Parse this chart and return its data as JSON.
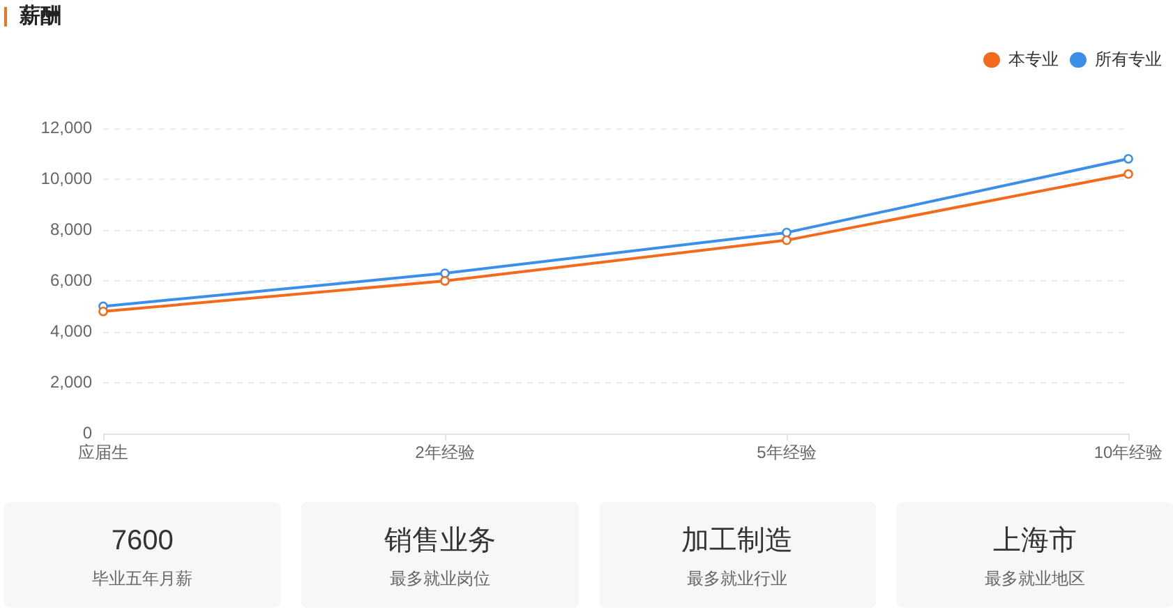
{
  "chart_data": [
    {
      "type": "line",
      "title": "薪酬",
      "categories": [
        "应届生",
        "2年经验",
        "5年经验",
        "10年经验"
      ],
      "series": [
        {
          "name": "本专业",
          "color": "#f26b1d",
          "values": [
            4800,
            6000,
            7600,
            10200
          ]
        },
        {
          "name": "所有专业",
          "color": "#3b8fe8",
          "values": [
            5000,
            6300,
            7900,
            10800
          ]
        }
      ],
      "ylim": [
        0,
        12000
      ],
      "yticks": [
        0,
        {
          "value": 2000,
          "label": "2,000"
        },
        {
          "value": 4000,
          "label": "4,000"
        },
        {
          "value": 6000,
          "label": "6,000"
        },
        {
          "value": 8000,
          "label": "8,000"
        },
        {
          "value": 10000,
          "label": "10,000"
        },
        {
          "value": 12000,
          "label": "12,000"
        }
      ],
      "grid": "y",
      "legend": "top right",
      "marker": "circle",
      "line_style": "solid"
    },
    {
      "type": "other",
      "title": "7600",
      "subtitle": "毕业五年月薪"
    },
    {
      "type": "other",
      "title": "销售业务",
      "subtitle": "最多就业岗位"
    },
    {
      "type": "other",
      "title": "加工制造",
      "subtitle": "最多就业行业"
    },
    {
      "type": "other",
      "title": "上海市",
      "subtitle": "最多就业地区"
    }
  ]
}
